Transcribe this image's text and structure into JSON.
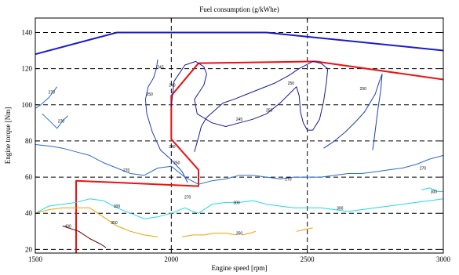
{
  "chart_data": {
    "type": "line",
    "title": "Fuel consumption (g/kWhe)",
    "xlabel": "Engine speed [rpm]",
    "ylabel": "Engine torque [Nm]",
    "xlim": [
      1500,
      3000
    ],
    "ylim": [
      18,
      148
    ],
    "x_ticks": [
      1500,
      2000,
      2500,
      3000
    ],
    "y_ticks": [
      20,
      40,
      60,
      80,
      100,
      120,
      140
    ],
    "grid": "dashed",
    "colors": {
      "max_torque": "#1a1acc",
      "operating_line": "#ee1111",
      "contour_245": "#1a1a99",
      "contour_250": "#1f3fb0",
      "contour_270": "#2b6ad0",
      "contour_300": "#22d8e0",
      "contour_350": "#f0a000",
      "contour_400": "#5a0000"
    },
    "series": [
      {
        "color_key": "max_torque",
        "points": [
          [
            1500,
            128
          ],
          [
            1800,
            140
          ],
          [
            2350,
            140
          ],
          [
            3000,
            130
          ]
        ]
      },
      {
        "color_key": "operating_line",
        "points": [
          [
            1650,
            18
          ],
          [
            1650,
            58
          ],
          [
            2100,
            55
          ],
          [
            2100,
            64
          ],
          [
            2000,
            81
          ],
          [
            2000,
            105
          ],
          [
            2100,
            123
          ],
          [
            2530,
            124
          ],
          [
            3000,
            114
          ]
        ]
      },
      {
        "color_key": "contour_245",
        "label": "245",
        "points": [
          [
            2000,
            99
          ],
          [
            2010,
            113
          ],
          [
            2050,
            122
          ],
          [
            2090,
            124
          ],
          [
            2120,
            121
          ],
          [
            2130,
            117
          ],
          [
            2120,
            111
          ],
          [
            2085,
            103
          ],
          [
            2095,
            95
          ],
          [
            2150,
            90
          ],
          [
            2200,
            88
          ],
          [
            2250,
            90
          ],
          [
            2300,
            92
          ],
          [
            2350,
            95
          ],
          [
            2400,
            101
          ],
          [
            2440,
            107
          ],
          [
            2460,
            110
          ],
          [
            2470,
            105
          ],
          [
            2475,
            96
          ],
          [
            2485,
            90
          ],
          [
            2500,
            86
          ],
          [
            2520,
            86
          ],
          [
            2545,
            92
          ],
          [
            2560,
            102
          ],
          [
            2570,
            112
          ],
          [
            2575,
            120
          ],
          [
            2550,
            123
          ],
          [
            2520,
            124
          ],
          [
            2470,
            120
          ],
          [
            2430,
            116
          ],
          [
            2380,
            112
          ],
          [
            2330,
            109
          ],
          [
            2280,
            106
          ],
          [
            2230,
            103
          ],
          [
            2190,
            101
          ],
          [
            2160,
            97
          ],
          [
            2130,
            93
          ],
          [
            2110,
            88
          ],
          [
            2100,
            82
          ],
          [
            2085,
            74
          ]
        ]
      },
      {
        "color_key": "contour_250",
        "label": "250",
        "points": [
          [
            2060,
            57
          ],
          [
            2040,
            63
          ],
          [
            2010,
            68
          ],
          [
            1990,
            71
          ],
          [
            1960,
            75
          ],
          [
            1930,
            85
          ],
          [
            1910,
            95
          ],
          [
            1905,
            103
          ],
          [
            1915,
            110
          ],
          [
            1935,
            115
          ],
          [
            1945,
            120
          ],
          [
            1950,
            125
          ]
        ]
      },
      {
        "color_key": "contour_250",
        "label": "250",
        "points": [
          [
            2560,
            76
          ],
          [
            2600,
            80
          ],
          [
            2640,
            85
          ],
          [
            2680,
            91
          ],
          [
            2710,
            96
          ],
          [
            2730,
            101
          ],
          [
            2750,
            106
          ],
          [
            2765,
            113
          ],
          [
            2775,
            117
          ],
          [
            2770,
            108
          ],
          [
            2760,
            98
          ],
          [
            2750,
            86
          ],
          [
            2745,
            80
          ],
          [
            2740,
            75
          ]
        ]
      },
      {
        "color_key": "contour_270",
        "label": "270",
        "points": [
          [
            1500,
            98
          ],
          [
            1520,
            100
          ],
          [
            1550,
            104
          ],
          [
            1570,
            108
          ],
          [
            1580,
            110
          ]
        ]
      },
      {
        "color_key": "contour_270",
        "label": "270",
        "points": [
          [
            1525,
            95
          ],
          [
            1560,
            90
          ],
          [
            1580,
            87
          ],
          [
            1600,
            91
          ],
          [
            1620,
            94
          ]
        ]
      },
      {
        "color_key": "contour_270",
        "label": "270",
        "points": [
          [
            1500,
            78
          ],
          [
            1560,
            77
          ],
          [
            1600,
            76
          ],
          [
            1650,
            74
          ],
          [
            1700,
            72
          ],
          [
            1750,
            68
          ],
          [
            1800,
            65
          ],
          [
            1850,
            62
          ],
          [
            1900,
            61
          ],
          [
            1950,
            65
          ],
          [
            2000,
            66
          ],
          [
            2050,
            60
          ],
          [
            2100,
            56
          ],
          [
            2150,
            58
          ],
          [
            2200,
            59
          ],
          [
            2250,
            61
          ],
          [
            2300,
            61
          ],
          [
            2350,
            60
          ],
          [
            2400,
            59
          ],
          [
            2450,
            60
          ],
          [
            2500,
            60
          ],
          [
            2550,
            60
          ],
          [
            2600,
            61
          ],
          [
            2650,
            62
          ],
          [
            2700,
            62
          ],
          [
            2750,
            63
          ],
          [
            2800,
            64
          ],
          [
            2850,
            65
          ],
          [
            2900,
            67
          ],
          [
            2950,
            70
          ],
          [
            3000,
            72
          ]
        ]
      },
      {
        "color_key": "contour_300",
        "label": "300",
        "points": [
          [
            1500,
            40
          ],
          [
            1550,
            44
          ],
          [
            1600,
            45
          ],
          [
            1650,
            46
          ],
          [
            1700,
            48
          ],
          [
            1750,
            47
          ],
          [
            1800,
            43
          ],
          [
            1850,
            40
          ],
          [
            1900,
            37
          ],
          [
            1950,
            38
          ],
          [
            2000,
            40
          ],
          [
            2050,
            43
          ],
          [
            2080,
            41
          ],
          [
            2100,
            40
          ],
          [
            2150,
            45
          ],
          [
            2200,
            46
          ],
          [
            2250,
            46
          ],
          [
            2300,
            47
          ],
          [
            2350,
            45
          ],
          [
            2400,
            44
          ],
          [
            2450,
            43
          ],
          [
            2500,
            43
          ],
          [
            2550,
            43
          ],
          [
            2600,
            42
          ],
          [
            2650,
            41
          ],
          [
            2700,
            42
          ],
          [
            2750,
            43
          ],
          [
            2800,
            44
          ],
          [
            2850,
            45
          ],
          [
            2900,
            46
          ],
          [
            2950,
            47
          ],
          [
            3000,
            48
          ]
        ]
      },
      {
        "color_key": "contour_300",
        "label": "300",
        "points": [
          [
            2920,
            53
          ],
          [
            2950,
            54
          ],
          [
            2980,
            52
          ],
          [
            3000,
            52
          ]
        ]
      },
      {
        "color_key": "contour_350",
        "label": "350",
        "points": [
          [
            1500,
            40
          ],
          [
            1550,
            42
          ],
          [
            1600,
            43
          ],
          [
            1650,
            43
          ],
          [
            1700,
            43
          ],
          [
            1750,
            38
          ],
          [
            1800,
            33
          ],
          [
            1850,
            30
          ],
          [
            1900,
            28
          ],
          [
            1950,
            27
          ]
        ]
      },
      {
        "color_key": "contour_350",
        "label": "350",
        "points": [
          [
            2040,
            27
          ],
          [
            2080,
            28
          ],
          [
            2120,
            28
          ],
          [
            2160,
            29
          ],
          [
            2200,
            29
          ],
          [
            2240,
            28
          ]
        ]
      },
      {
        "color_key": "contour_350",
        "label": "350",
        "points": [
          [
            2260,
            28
          ],
          [
            2290,
            29
          ],
          [
            2310,
            30
          ]
        ]
      },
      {
        "color_key": "contour_350",
        "label": "350",
        "points": [
          [
            2460,
            30
          ],
          [
            2490,
            31
          ],
          [
            2520,
            32
          ]
        ]
      },
      {
        "color_key": "contour_400",
        "label": "400",
        "points": [
          [
            1600,
            33
          ],
          [
            1660,
            30
          ],
          [
            1700,
            26
          ],
          [
            1740,
            23
          ],
          [
            1760,
            21
          ]
        ]
      }
    ],
    "contour_labels": [
      {
        "text": "270",
        "x": 1560,
        "y": 107
      },
      {
        "text": "270",
        "x": 1595,
        "y": 91
      },
      {
        "text": "270",
        "x": 1835,
        "y": 64
      },
      {
        "text": "300",
        "x": 1800,
        "y": 44
      },
      {
        "text": "350",
        "x": 1790,
        "y": 35
      },
      {
        "text": "400",
        "x": 1620,
        "y": 33
      },
      {
        "text": "245",
        "x": 1960,
        "y": 121
      },
      {
        "text": "250",
        "x": 1920,
        "y": 106
      },
      {
        "text": "240",
        "x": 2003,
        "y": 111
      },
      {
        "text": "240",
        "x": 2003,
        "y": 77
      },
      {
        "text": "250",
        "x": 2020,
        "y": 68
      },
      {
        "text": "270",
        "x": 2060,
        "y": 49
      },
      {
        "text": "245",
        "x": 2250,
        "y": 92
      },
      {
        "text": "250",
        "x": 2360,
        "y": 97
      },
      {
        "text": "250",
        "x": 2440,
        "y": 112
      },
      {
        "text": "250",
        "x": 2705,
        "y": 109
      },
      {
        "text": "270",
        "x": 2430,
        "y": 59
      },
      {
        "text": "270",
        "x": 2925,
        "y": 65
      },
      {
        "text": "300",
        "x": 2240,
        "y": 46
      },
      {
        "text": "300",
        "x": 2620,
        "y": 43
      },
      {
        "text": "300",
        "x": 2965,
        "y": 52
      },
      {
        "text": "350",
        "x": 2250,
        "y": 29
      }
    ]
  }
}
